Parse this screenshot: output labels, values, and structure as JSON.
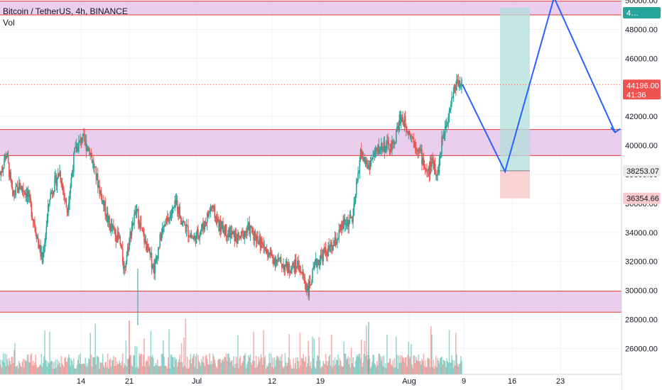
{
  "header": {
    "symbol_title": "Bitcoin / TetherUS, 4h, BINANCE",
    "volume_label": "Vol"
  },
  "colors": {
    "up": "#26a69a",
    "down": "#ef5350",
    "zone_fill": "#e1bee7",
    "zone_border": "#e53935",
    "arrow": "#2962ff",
    "target_zone": "#b2dfdb",
    "stop_zone": "#fccbcd",
    "price_label_red": "#ef5350",
    "price_label_gray": "#ececec",
    "price_label_pink": "#fccbcd"
  },
  "chart_data": {
    "type": "candlestick",
    "currency": "USDT",
    "y_axis_ticks": [
      "26000.00",
      "28000.00",
      "30000.00",
      "32000.00",
      "34000.00",
      "36000.00",
      "38000.00",
      "40000.00",
      "42000.00",
      "44000.00",
      "46000.00",
      "48000.00",
      "50000.00"
    ],
    "ylim": [
      24800,
      50200
    ],
    "x_axis_ticks": [
      "14",
      "21",
      "Jul",
      "12",
      "19",
      "Aug",
      "9",
      "16",
      "23"
    ],
    "price_labels": [
      {
        "price": "44196.00",
        "sub": "41:36",
        "style": "current"
      },
      {
        "price": "38253.07",
        "style": "entry"
      },
      {
        "price": "36354.66",
        "style": "stop"
      },
      {
        "price": "4…",
        "style": "target"
      }
    ],
    "zones": [
      {
        "name": "resistance-zone-top",
        "from": 49000,
        "to": 49950
      },
      {
        "name": "resistance-support-zone-middle",
        "from": 39300,
        "to": 41100
      },
      {
        "name": "support-zone-bottom",
        "from": 28500,
        "to": 29950
      }
    ],
    "current_price": 44196,
    "trade": {
      "entry": 38253.07,
      "stop": 36354.66,
      "target": 49500
    },
    "projection_path": [
      {
        "x_tick": "9",
        "price": 44200
      },
      {
        "x_tick": "16",
        "price": 38200
      },
      {
        "x_tick": "23",
        "price": 50200
      },
      {
        "x_tick": "30",
        "price": 40900
      }
    ],
    "close_path": [
      {
        "day": 0,
        "price": 38000
      },
      {
        "day": 1.3,
        "price": 39500
      },
      {
        "day": 2.5,
        "price": 36500
      },
      {
        "day": 4,
        "price": 37200
      },
      {
        "day": 5.5,
        "price": 36700
      },
      {
        "day": 7,
        "price": 34500
      },
      {
        "day": 8.5,
        "price": 32000
      },
      {
        "day": 10,
        "price": 36500
      },
      {
        "day": 12,
        "price": 38200
      },
      {
        "day": 13.5,
        "price": 35500
      },
      {
        "day": 15,
        "price": 39500
      },
      {
        "day": 16.5,
        "price": 40500
      },
      {
        "day": 18,
        "price": 39700
      },
      {
        "day": 20,
        "price": 37000
      },
      {
        "day": 22,
        "price": 34500
      },
      {
        "day": 24,
        "price": 33500
      },
      {
        "day": 25,
        "price": 31500
      },
      {
        "day": 26.5,
        "price": 34500
      },
      {
        "day": 27.5,
        "price": 35500
      },
      {
        "day": 28.5,
        "price": 34000
      },
      {
        "day": 29.5,
        "price": 33000
      },
      {
        "day": 31,
        "price": 31500
      },
      {
        "day": 32.5,
        "price": 34000
      },
      {
        "day": 34,
        "price": 35000
      },
      {
        "day": 35.5,
        "price": 36000
      },
      {
        "day": 37,
        "price": 34500
      },
      {
        "day": 39,
        "price": 33500
      },
      {
        "day": 41,
        "price": 34500
      },
      {
        "day": 42.5,
        "price": 35800
      },
      {
        "day": 44,
        "price": 34500
      },
      {
        "day": 46,
        "price": 34000
      },
      {
        "day": 48,
        "price": 33500
      },
      {
        "day": 50,
        "price": 34300
      },
      {
        "day": 52,
        "price": 33500
      },
      {
        "day": 54,
        "price": 32500
      },
      {
        "day": 56,
        "price": 32000
      },
      {
        "day": 58,
        "price": 31500
      },
      {
        "day": 60,
        "price": 31800
      },
      {
        "day": 62,
        "price": 30000
      },
      {
        "day": 63.5,
        "price": 31800
      },
      {
        "day": 65,
        "price": 32500
      },
      {
        "day": 67,
        "price": 33000
      },
      {
        "day": 69,
        "price": 34500
      },
      {
        "day": 71,
        "price": 35000
      },
      {
        "day": 72.5,
        "price": 39500
      },
      {
        "day": 74,
        "price": 38500
      },
      {
        "day": 75.5,
        "price": 39500
      },
      {
        "day": 77,
        "price": 40000
      },
      {
        "day": 79,
        "price": 39800
      },
      {
        "day": 80.5,
        "price": 42000
      },
      {
        "day": 81.5,
        "price": 41500
      },
      {
        "day": 83,
        "price": 40500
      },
      {
        "day": 84.5,
        "price": 39500
      },
      {
        "day": 86,
        "price": 38000
      },
      {
        "day": 87,
        "price": 39000
      },
      {
        "day": 88,
        "price": 38000
      },
      {
        "day": 89,
        "price": 40500
      },
      {
        "day": 90,
        "price": 42000
      },
      {
        "day": 91,
        "price": 43500
      },
      {
        "day": 92,
        "price": 44500
      },
      {
        "day": 93,
        "price": 44200
      }
    ]
  }
}
